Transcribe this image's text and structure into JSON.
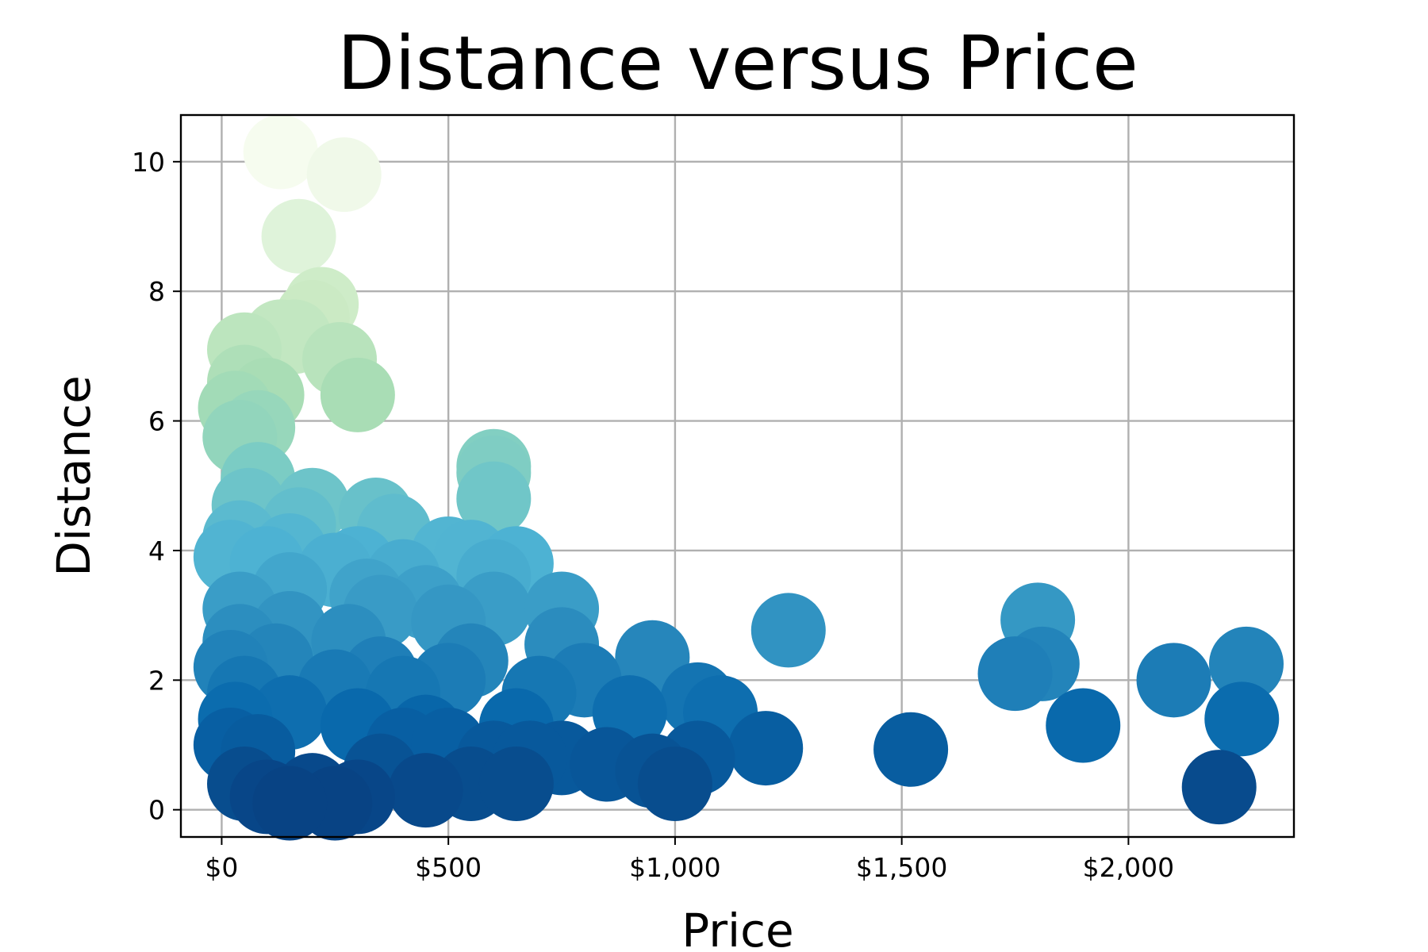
{
  "chart_data": {
    "type": "scatter",
    "title": "Distance versus Price",
    "xlabel": "Price",
    "ylabel": "Distance",
    "xlim": [
      -90,
      2365
    ],
    "ylim": [
      -0.42,
      10.72
    ],
    "xticks": [
      0,
      500,
      1000,
      1500,
      2000
    ],
    "xtick_labels": [
      "$0",
      "$500",
      "$1,000",
      "$1,500",
      "$2,000"
    ],
    "yticks": [
      0,
      2,
      4,
      6,
      8,
      10
    ],
    "ytick_labels": [
      "0",
      "2",
      "4",
      "6",
      "8",
      "10"
    ],
    "grid": true,
    "legend": "none",
    "colormap": "GnBu (colored by distance)",
    "points": [
      {
        "x": 250,
        "y": 0.1
      },
      {
        "x": 300,
        "y": 0.2
      },
      {
        "x": 150,
        "y": 0.1
      },
      {
        "x": 100,
        "y": 0.2
      },
      {
        "x": 50,
        "y": 0.4
      },
      {
        "x": 200,
        "y": 0.3
      },
      {
        "x": 450,
        "y": 0.3
      },
      {
        "x": 550,
        "y": 0.4
      },
      {
        "x": 650,
        "y": 0.4
      },
      {
        "x": 1000,
        "y": 0.4
      },
      {
        "x": 2200,
        "y": 0.35
      },
      {
        "x": 350,
        "y": 0.6
      },
      {
        "x": 600,
        "y": 0.8
      },
      {
        "x": 750,
        "y": 0.8
      },
      {
        "x": 850,
        "y": 0.7
      },
      {
        "x": 950,
        "y": 0.6
      },
      {
        "x": 1050,
        "y": 0.8
      },
      {
        "x": 1200,
        "y": 0.95
      },
      {
        "x": 1520,
        "y": 0.93
      },
      {
        "x": 20,
        "y": 1.0
      },
      {
        "x": 80,
        "y": 0.9
      },
      {
        "x": 400,
        "y": 1.0
      },
      {
        "x": 500,
        "y": 1.0
      },
      {
        "x": 680,
        "y": 0.8
      },
      {
        "x": 30,
        "y": 1.4
      },
      {
        "x": 150,
        "y": 1.5
      },
      {
        "x": 300,
        "y": 1.3
      },
      {
        "x": 450,
        "y": 1.2
      },
      {
        "x": 650,
        "y": 1.3
      },
      {
        "x": 900,
        "y": 1.5
      },
      {
        "x": 1100,
        "y": 1.5
      },
      {
        "x": 1900,
        "y": 1.3
      },
      {
        "x": 2250,
        "y": 1.4
      },
      {
        "x": 50,
        "y": 1.8
      },
      {
        "x": 250,
        "y": 1.9
      },
      {
        "x": 400,
        "y": 1.8
      },
      {
        "x": 500,
        "y": 2.0
      },
      {
        "x": 700,
        "y": 1.8
      },
      {
        "x": 800,
        "y": 2.0
      },
      {
        "x": 1050,
        "y": 1.7
      },
      {
        "x": 1750,
        "y": 2.1
      },
      {
        "x": 2100,
        "y": 2.0
      },
      {
        "x": 20,
        "y": 2.2
      },
      {
        "x": 120,
        "y": 2.3
      },
      {
        "x": 350,
        "y": 2.1
      },
      {
        "x": 550,
        "y": 2.3
      },
      {
        "x": 950,
        "y": 2.35
      },
      {
        "x": 1810,
        "y": 2.25
      },
      {
        "x": 2260,
        "y": 2.25
      },
      {
        "x": 40,
        "y": 2.6
      },
      {
        "x": 150,
        "y": 2.8
      },
      {
        "x": 280,
        "y": 2.6
      },
      {
        "x": 500,
        "y": 2.9
      },
      {
        "x": 750,
        "y": 2.55
      },
      {
        "x": 1250,
        "y": 2.77
      },
      {
        "x": 1800,
        "y": 2.93
      },
      {
        "x": 40,
        "y": 3.1
      },
      {
        "x": 150,
        "y": 3.4
      },
      {
        "x": 320,
        "y": 3.3
      },
      {
        "x": 450,
        "y": 3.2
      },
      {
        "x": 600,
        "y": 3.1
      },
      {
        "x": 750,
        "y": 3.1
      },
      {
        "x": 350,
        "y": 3.05
      },
      {
        "x": 20,
        "y": 3.9
      },
      {
        "x": 100,
        "y": 3.8
      },
      {
        "x": 250,
        "y": 3.7
      },
      {
        "x": 300,
        "y": 3.8
      },
      {
        "x": 400,
        "y": 3.6
      },
      {
        "x": 650,
        "y": 3.8
      },
      {
        "x": 600,
        "y": 3.6
      },
      {
        "x": 40,
        "y": 4.2
      },
      {
        "x": 150,
        "y": 4.0
      },
      {
        "x": 380,
        "y": 4.3
      },
      {
        "x": 500,
        "y": 3.95
      },
      {
        "x": 550,
        "y": 3.9
      },
      {
        "x": 60,
        "y": 4.7
      },
      {
        "x": 200,
        "y": 4.7
      },
      {
        "x": 170,
        "y": 4.4
      },
      {
        "x": 340,
        "y": 4.55
      },
      {
        "x": 80,
        "y": 5.1
      },
      {
        "x": 600,
        "y": 4.8
      },
      {
        "x": 600,
        "y": 5.2
      },
      {
        "x": 600,
        "y": 5.3
      },
      {
        "x": 40,
        "y": 5.75
      },
      {
        "x": 80,
        "y": 5.9
      },
      {
        "x": 30,
        "y": 6.2
      },
      {
        "x": 100,
        "y": 6.4
      },
      {
        "x": 300,
        "y": 6.4
      },
      {
        "x": 260,
        "y": 6.95
      },
      {
        "x": 50,
        "y": 6.6
      },
      {
        "x": 130,
        "y": 7.3
      },
      {
        "x": 160,
        "y": 7.3
      },
      {
        "x": 50,
        "y": 7.1
      },
      {
        "x": 200,
        "y": 7.6
      },
      {
        "x": 220,
        "y": 7.8
      },
      {
        "x": 170,
        "y": 8.85
      },
      {
        "x": 130,
        "y": 10.15
      },
      {
        "x": 270,
        "y": 9.8
      }
    ]
  }
}
